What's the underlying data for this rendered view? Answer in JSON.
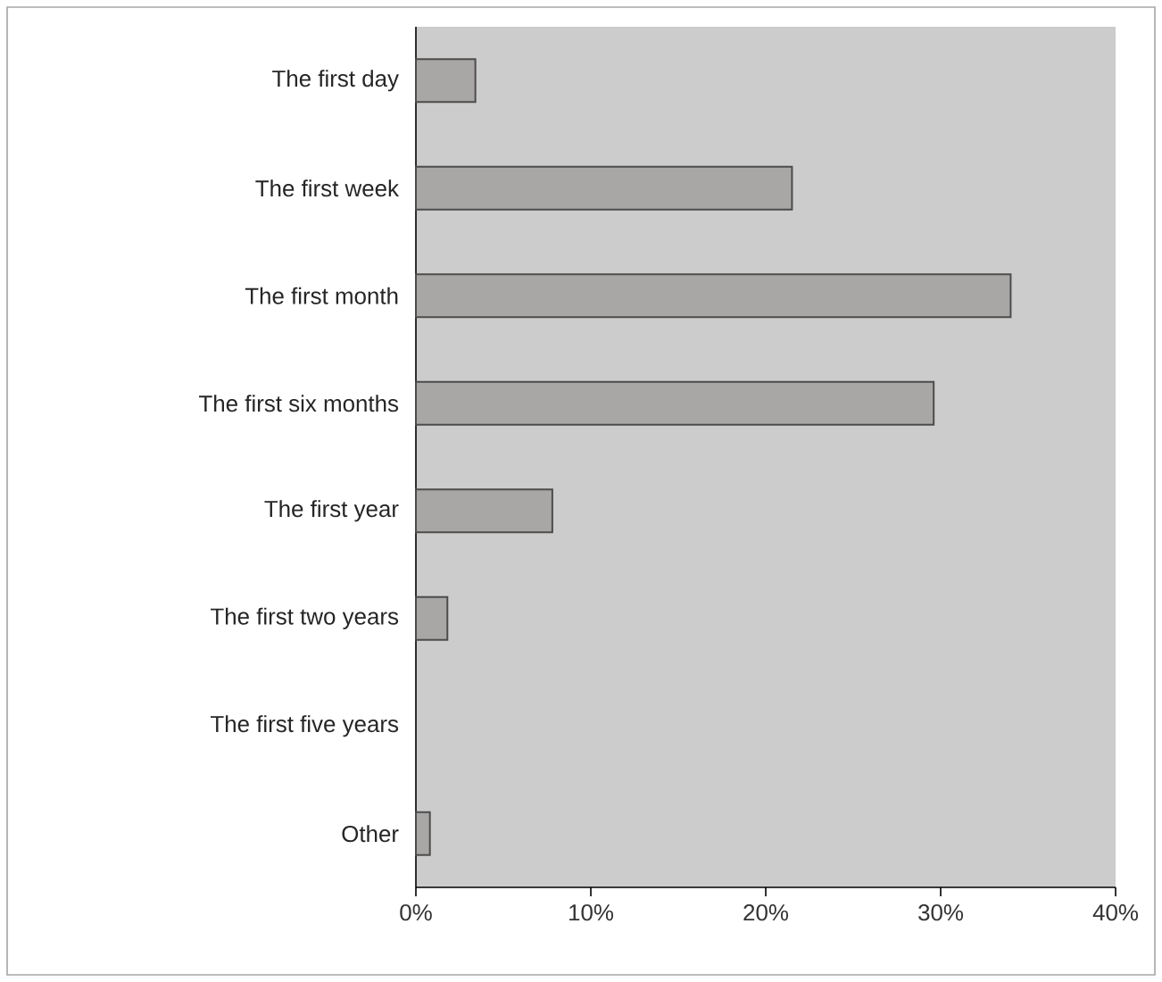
{
  "chart_data": {
    "type": "bar",
    "orientation": "horizontal",
    "categories": [
      "The first day",
      "The first week",
      "The first month",
      "The first six months",
      "The first year",
      "The first two years",
      "The first five years",
      "Other"
    ],
    "values": [
      3.4,
      21.5,
      34,
      29.6,
      7.8,
      1.8,
      0,
      0.8
    ],
    "color": "#a9a7a5",
    "xlim": [
      0,
      40
    ],
    "xticks": [
      {
        "value": 0,
        "label": "0%"
      },
      {
        "value": 10,
        "label": "10%"
      },
      {
        "value": 20,
        "label": "20%"
      },
      {
        "value": 30,
        "label": "30%"
      },
      {
        "value": 40,
        "label": "40%"
      }
    ],
    "grid": false
  }
}
